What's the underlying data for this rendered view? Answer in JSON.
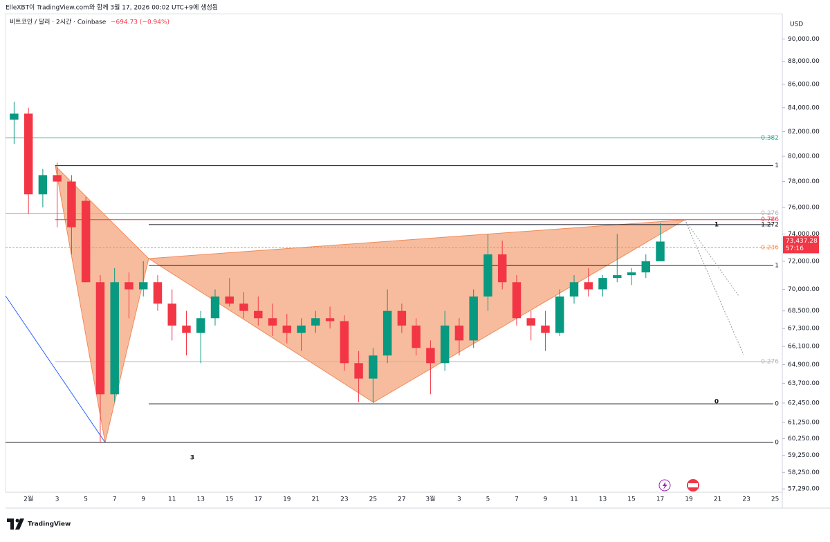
{
  "header": {
    "attribution": "ElleXBT이 TradingView.com와 함께 3월 17, 2026 00:02 UTC+9에 생성됨"
  },
  "chart_data": {
    "type": "candlestick",
    "title": "비트코인 / 달러 · 2시간 · Coinbase",
    "change": "−694.73 (−0.94%)",
    "currency": "USD",
    "categories": [
      null,
      "2월",
      null,
      "3",
      null,
      "5",
      null,
      "7",
      null,
      "9",
      null,
      "11",
      null,
      "13",
      null,
      "15",
      null,
      "17",
      null,
      "19",
      null,
      "21",
      null,
      "23",
      null,
      "25",
      null,
      "27",
      null,
      "3월",
      null,
      "3",
      null,
      "5",
      null,
      "7",
      null,
      "9",
      null,
      "11",
      null,
      "13",
      null,
      "15",
      null,
      "17",
      null,
      "19",
      null,
      "21",
      null,
      "23",
      null,
      "25"
    ],
    "open": [
      83000,
      83500,
      77000,
      78500,
      78000,
      76500,
      70500,
      63000,
      70500,
      70000,
      70500,
      69000,
      67500,
      67000,
      68000,
      69500,
      69000,
      68500,
      68000,
      67500,
      67000,
      67500,
      68000,
      67800,
      65000,
      64000,
      65500,
      68500,
      67500,
      66000,
      65000,
      67500,
      66500,
      69500,
      72500,
      70500,
      68000,
      67500,
      67000,
      69500,
      70500,
      70000,
      70800,
      71000,
      71200,
      72000,
      null,
      null,
      null,
      null,
      null,
      null,
      null,
      null
    ],
    "high": [
      84500,
      84000,
      79000,
      79500,
      78500,
      76800,
      71000,
      71500,
      71200,
      72000,
      71000,
      70000,
      68500,
      68500,
      70000,
      70800,
      69800,
      69500,
      69000,
      68300,
      68000,
      68500,
      68800,
      68200,
      65800,
      66000,
      70000,
      69000,
      68000,
      66500,
      68500,
      68000,
      70000,
      74000,
      73500,
      71000,
      68500,
      68500,
      70000,
      71000,
      71500,
      71000,
      74000,
      71500,
      72500,
      74800,
      null,
      null,
      null,
      null,
      null,
      null,
      null,
      null
    ],
    "low": [
      81000,
      75500,
      76000,
      74500,
      72500,
      70500,
      60000,
      62500,
      68000,
      69500,
      68500,
      66500,
      65500,
      65000,
      67500,
      68800,
      68000,
      67500,
      66800,
      66300,
      65800,
      67000,
      67300,
      64500,
      62500,
      62450,
      65000,
      67000,
      65500,
      63000,
      64500,
      65500,
      66000,
      68500,
      70000,
      67500,
      66500,
      65800,
      66800,
      69000,
      69500,
      69500,
      70500,
      70300,
      70800,
      72000,
      null,
      null,
      null,
      null,
      null,
      null,
      null,
      null
    ],
    "close": [
      83500,
      77000,
      78500,
      78000,
      74500,
      70500,
      63000,
      70500,
      70000,
      70500,
      69000,
      67500,
      67000,
      68000,
      69500,
      69000,
      68500,
      68000,
      67500,
      67000,
      67500,
      68000,
      67800,
      65000,
      64000,
      65500,
      68500,
      67500,
      66000,
      65000,
      67500,
      66500,
      69500,
      72500,
      70500,
      68000,
      67500,
      67000,
      69500,
      70500,
      70000,
      70800,
      71000,
      71200,
      72000,
      73437.28,
      null,
      null,
      null,
      null,
      null,
      null,
      null,
      null
    ],
    "up_color": "#089981",
    "down_color": "#f23645",
    "log_scale": true,
    "ylim": [
      57100,
      92300
    ],
    "yticks": [
      {
        "value": 90000,
        "label": "90,000.00"
      },
      {
        "value": 88000,
        "label": "88,000.00"
      },
      {
        "value": 86000,
        "label": "86,000.00"
      },
      {
        "value": 84000,
        "label": "84,000.00"
      },
      {
        "value": 82000,
        "label": "82,000.00"
      },
      {
        "value": 80000,
        "label": "80,000.00"
      },
      {
        "value": 78000,
        "label": "78,000.00"
      },
      {
        "value": 76000,
        "label": "76,000.00"
      },
      {
        "value": 74000,
        "label": "74,000.00"
      },
      {
        "value": 72000,
        "label": "72,000.00"
      },
      {
        "value": 70000,
        "label": "70,000.00"
      },
      {
        "value": 68500,
        "label": "68,500.00"
      },
      {
        "value": 67300,
        "label": "67,300.00"
      },
      {
        "value": 66100,
        "label": "66,100.00"
      },
      {
        "value": 64900,
        "label": "64,900.00"
      },
      {
        "value": 63700,
        "label": "63,700.00"
      },
      {
        "value": 62450,
        "label": "62,450.00"
      },
      {
        "value": 61250,
        "label": "61,250.00"
      },
      {
        "value": 60250,
        "label": "60,250.00"
      },
      {
        "value": 59250,
        "label": "59,250.00"
      },
      {
        "value": 58250,
        "label": "58,250.00"
      },
      {
        "value": 57290,
        "label": "57,290.00"
      }
    ],
    "levels": [
      {
        "label": "0.382",
        "value": 81490,
        "color": "#22ab94"
      },
      {
        "label": "1",
        "value": 79250,
        "color": "#131722"
      },
      {
        "label": "0.276",
        "value": 75550,
        "color": "#b2b5be"
      },
      {
        "label": "0.786",
        "value": 75070,
        "color": "#f23645"
      },
      {
        "label": "1.272",
        "value": 74700,
        "color": "#131722"
      },
      {
        "label": "0.236",
        "value": 72990,
        "color": "#ff8a3d"
      },
      {
        "label": "1",
        "value": 71700,
        "color": "#131722"
      },
      {
        "label": "0.276",
        "value": 65100,
        "color": "#b2b5be"
      },
      {
        "label": "0",
        "value": 62400,
        "color": "#131722"
      },
      {
        "label": "0",
        "value": 60030,
        "color": "#131722"
      }
    ],
    "annotations": [
      "3",
      "0",
      "1"
    ],
    "last_price": {
      "value": 73437.28,
      "label": "73,437.28"
    },
    "countdown": "57:16"
  },
  "footer": {
    "logo": "TradingView"
  }
}
